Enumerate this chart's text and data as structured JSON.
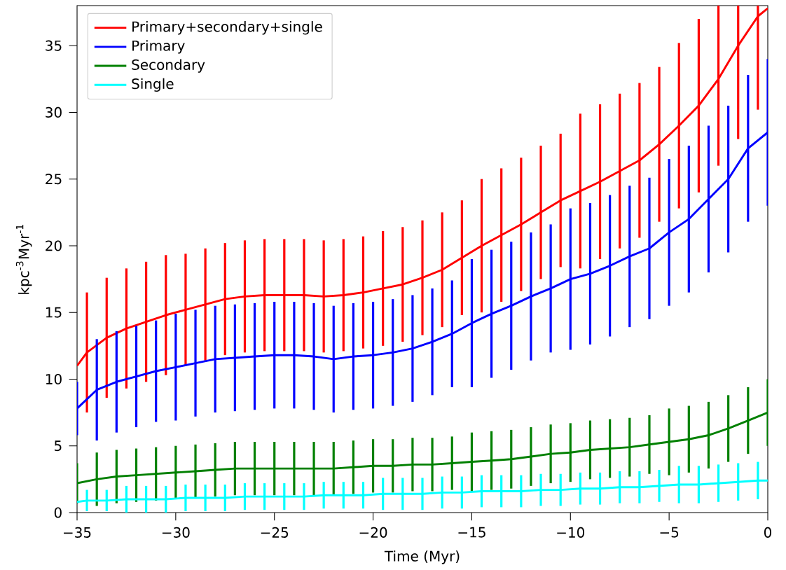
{
  "chart_data": {
    "type": "line",
    "xlabel": "Time (Myr)",
    "ylabel": "kpc$^{-3}$Myr$^{-1}$",
    "xlim": [
      -35,
      0
    ],
    "ylim": [
      0,
      38
    ],
    "xticks": [
      {
        "value": -35,
        "label": "−35"
      },
      {
        "value": -30,
        "label": "−30"
      },
      {
        "value": -25,
        "label": "−25"
      },
      {
        "value": -20,
        "label": "−20"
      },
      {
        "value": -15,
        "label": "−15"
      },
      {
        "value": -10,
        "label": "−10"
      },
      {
        "value": -5,
        "label": "−5"
      },
      0
    ],
    "yticks": [
      0,
      5,
      10,
      15,
      20,
      25,
      30,
      35
    ],
    "legend": "top left",
    "marker": "none",
    "line_style": "solid",
    "x": [
      -35,
      -34,
      -33,
      -32,
      -31,
      -30,
      -29,
      -28,
      -27,
      -26,
      -25,
      -24,
      -23,
      -22,
      -21,
      -20,
      -19,
      -18,
      -17,
      -16,
      -15,
      -14,
      -13,
      -12,
      -11,
      -10,
      -9,
      -8,
      -7,
      -6,
      -5,
      -4,
      -3,
      -2,
      -1,
      0
    ],
    "series": [
      {
        "name": "Primary+secondary+single",
        "color": "#ff0000",
        "x": [
          -35,
          -34.5,
          -33.5,
          -32.5,
          -31.5,
          -30.5,
          -29.5,
          -28.5,
          -27.5,
          -26.5,
          -25.5,
          -24.5,
          -23.5,
          -22.5,
          -21.5,
          -20.5,
          -19.5,
          -18.5,
          -17.5,
          -16.5,
          -15.5,
          -14.5,
          -13.5,
          -12.5,
          -11.5,
          -10.5,
          -9.5,
          -8.5,
          -7.5,
          -6.5,
          -5.5,
          -4.5,
          -3.5,
          -2.5,
          -1.5,
          -0.5,
          0
        ],
        "values": [
          11.0,
          12.0,
          13.1,
          13.8,
          14.3,
          14.8,
          15.2,
          15.6,
          16.0,
          16.2,
          16.3,
          16.3,
          16.3,
          16.2,
          16.3,
          16.5,
          16.8,
          17.1,
          17.6,
          18.2,
          19.1,
          20.0,
          20.8,
          21.6,
          22.5,
          23.4,
          24.1,
          24.8,
          25.6,
          26.4,
          27.6,
          29.0,
          30.5,
          32.5,
          35.0,
          37.2,
          37.8
        ],
        "errors": [
          null,
          4.5,
          4.5,
          4.5,
          4.5,
          4.5,
          4.2,
          4.2,
          4.2,
          4.2,
          4.2,
          4.2,
          4.2,
          4.2,
          4.2,
          4.2,
          4.3,
          4.3,
          4.3,
          4.3,
          4.3,
          5,
          5,
          5,
          5,
          5,
          5.8,
          5.8,
          5.8,
          5.8,
          5.8,
          6.2,
          6.5,
          [
            26.0,
            38
          ],
          [
            28.0,
            38
          ],
          [
            30.2,
            38
          ],
          null
        ]
      },
      {
        "name": "Primary",
        "color": "#0000ff",
        "values": [
          7.8,
          9.2,
          9.8,
          10.2,
          10.6,
          10.9,
          11.2,
          11.5,
          11.6,
          11.7,
          11.8,
          11.8,
          11.7,
          11.5,
          11.7,
          11.8,
          12.0,
          12.3,
          12.8,
          13.4,
          14.2,
          14.9,
          15.5,
          16.2,
          16.8,
          17.5,
          17.9,
          18.5,
          19.2,
          19.8,
          21.0,
          22.0,
          23.5,
          25.0,
          27.3,
          28.5
        ],
        "errors": [
          2,
          3.8,
          3.8,
          3.8,
          3.8,
          4,
          4,
          4,
          4,
          4,
          4,
          4,
          4,
          4,
          4,
          4,
          4,
          4,
          4,
          4,
          4.8,
          4.8,
          4.8,
          4.8,
          4.8,
          5.3,
          5.3,
          5.3,
          5.3,
          5.3,
          5.5,
          5.5,
          5.5,
          5.5,
          5.5,
          5.5
        ]
      },
      {
        "name": "Secondary",
        "color": "#008000",
        "values": [
          2.2,
          2.5,
          2.7,
          2.8,
          2.9,
          3.0,
          3.1,
          3.2,
          3.3,
          3.3,
          3.3,
          3.3,
          3.3,
          3.3,
          3.4,
          3.5,
          3.5,
          3.6,
          3.6,
          3.7,
          3.8,
          3.9,
          4.0,
          4.2,
          4.4,
          4.5,
          4.7,
          4.8,
          4.9,
          5.1,
          5.3,
          5.5,
          5.8,
          6.3,
          6.9,
          7.5
        ],
        "errors": [
          1.5,
          2,
          2,
          2,
          2,
          2,
          2,
          2,
          2,
          2,
          2,
          2,
          2,
          2,
          2,
          2,
          2,
          2,
          2,
          2,
          2.2,
          2.2,
          2.2,
          2.2,
          2.2,
          2.2,
          2.2,
          2.2,
          2.2,
          2.2,
          2.5,
          2.5,
          2.5,
          2.5,
          2.5,
          2.5
        ]
      },
      {
        "name": "Single",
        "color": "#00ffff",
        "x": [
          -35,
          -34.5,
          -33.5,
          -32.5,
          -31.5,
          -30.5,
          -29.5,
          -28.5,
          -27.5,
          -26.5,
          -25.5,
          -24.5,
          -23.5,
          -22.5,
          -21.5,
          -20.5,
          -19.5,
          -18.5,
          -17.5,
          -16.5,
          -15.5,
          -14.5,
          -13.5,
          -12.5,
          -11.5,
          -10.5,
          -9.5,
          -8.5,
          -7.5,
          -6.5,
          -5.5,
          -4.5,
          -3.5,
          -2.5,
          -1.5,
          -0.5,
          0
        ],
        "values": [
          0.8,
          0.9,
          0.9,
          1.0,
          1.0,
          1.0,
          1.1,
          1.1,
          1.1,
          1.2,
          1.2,
          1.2,
          1.2,
          1.3,
          1.3,
          1.3,
          1.4,
          1.4,
          1.4,
          1.5,
          1.5,
          1.6,
          1.6,
          1.6,
          1.7,
          1.7,
          1.8,
          1.8,
          1.9,
          1.9,
          2.0,
          2.1,
          2.1,
          2.2,
          2.3,
          2.4,
          2.4
        ],
        "errors": [
          null,
          0.8,
          0.8,
          1,
          1,
          1,
          1,
          1,
          1,
          1,
          1,
          1,
          1,
          1,
          1,
          1,
          1.2,
          1.2,
          1.2,
          1.2,
          1.2,
          1.2,
          1.2,
          1.2,
          1.2,
          1.2,
          1.2,
          1.2,
          1.2,
          1.2,
          1.2,
          1.4,
          1.4,
          1.4,
          1.4,
          1.4,
          null
        ]
      }
    ]
  }
}
